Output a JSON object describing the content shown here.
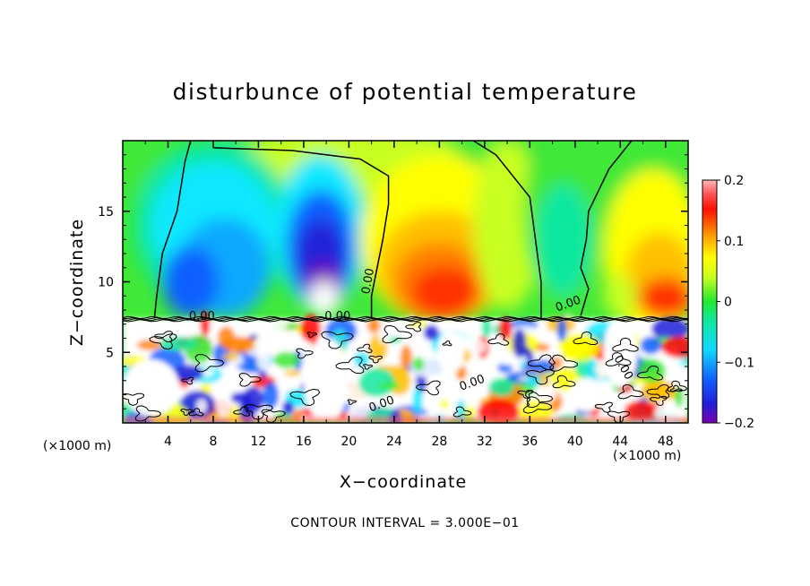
{
  "chart_data": {
    "type": "heatmap",
    "title": "disturbunce of potential temperature",
    "xlabel": "X−coordinate",
    "ylabel": "Z−coordinate",
    "x_unit_left": "(×1000 m)",
    "x_unit_right": "(×1000 m)",
    "xlim": [
      0,
      50
    ],
    "ylim": [
      0,
      20
    ],
    "x_ticks": [
      4,
      8,
      12,
      16,
      20,
      24,
      28,
      32,
      36,
      40,
      44,
      48
    ],
    "y_ticks": [
      5,
      10,
      15
    ],
    "colorbar": {
      "range": [
        -0.2,
        0.2
      ],
      "ticks": [
        -0.2,
        -0.1,
        0,
        0.1,
        0.2
      ],
      "tick_labels": [
        "−0.2",
        "−0.1",
        "0",
        "0.1",
        "0.2"
      ],
      "colors": [
        "#7a00b0",
        "#2020d8",
        "#1060ff",
        "#10a8ff",
        "#10e8ff",
        "#10e8a8",
        "#10e838",
        "#60ff30",
        "#c8ff20",
        "#ffff00",
        "#ffc000",
        "#ff8000",
        "#ff3000",
        "#ff0000",
        "#ff6060",
        "#ffb0b0"
      ]
    },
    "contour_labels": [
      {
        "x": 7,
        "z": 7.3,
        "text": "0.00"
      },
      {
        "x": 19,
        "z": 7.3,
        "text": "0.00"
      },
      {
        "x": 22,
        "z": 10,
        "text": "0.00"
      },
      {
        "x": 39.5,
        "z": 8.2,
        "text": "0.00"
      },
      {
        "x": 23,
        "z": 1.1,
        "text": "0.00"
      },
      {
        "x": 31,
        "z": 2.6,
        "text": "0.00"
      },
      {
        "x": 44,
        "z": 3.8,
        "text": "0.00"
      }
    ],
    "contour_interval": "CONTOUR INTERVAL = 3.000E−01",
    "regions_description": [
      {
        "x": [
          2,
          13
        ],
        "z": [
          10,
          18
        ],
        "value": -0.1
      },
      {
        "x": [
          14,
          21
        ],
        "z": [
          10,
          16
        ],
        "value": -0.15
      },
      {
        "x": [
          22,
          36
        ],
        "z": [
          8,
          18
        ],
        "value": 0.1
      },
      {
        "x": [
          43,
          50
        ],
        "z": [
          8,
          17
        ],
        "value": 0.1
      },
      {
        "x": [
          36,
          42
        ],
        "z": [
          8,
          20
        ],
        "value": 0.0
      }
    ]
  }
}
